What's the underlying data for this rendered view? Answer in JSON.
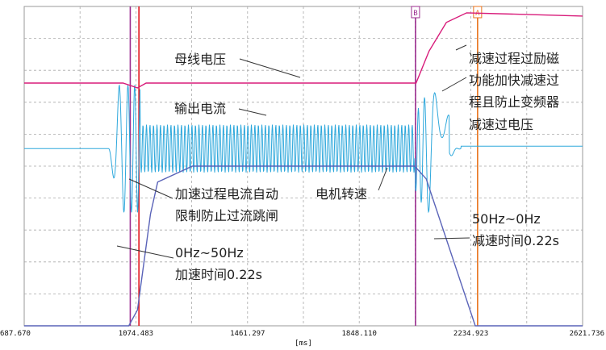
{
  "chart_data": {
    "type": "line",
    "xlabel": "[ms]",
    "x_ticks": [
      "687.670",
      "1074.483",
      "1461.297",
      "1848.110",
      "2234.923",
      "2621.736"
    ],
    "xlim": [
      687.67,
      2621.736
    ],
    "grid": true,
    "markers": [
      {
        "name": "",
        "x": 1055,
        "color": "#9b2d8f"
      },
      {
        "name": "",
        "x": 1085,
        "color": "#e0141b"
      },
      {
        "name": "B",
        "x": 2043,
        "color": "#9b2d8f"
      },
      {
        "name": "A",
        "x": 2258,
        "color": "#e8731c"
      }
    ],
    "series": [
      {
        "name": "母线电压",
        "color": "#d81b7a",
        "x": [
          687.67,
          1030,
          1080,
          1110,
          2045,
          2090,
          2150,
          2220,
          2621.736
        ],
        "y": [
          0.76,
          0.76,
          0.745,
          0.76,
          0.76,
          0.86,
          0.95,
          0.98,
          0.97
        ]
      },
      {
        "name": "电机转速",
        "color": "#5a63b8",
        "x": [
          687.67,
          1050,
          1080,
          1125,
          1150,
          1270,
          2040,
          2080,
          2250,
          2330,
          2621.736
        ],
        "y": [
          0,
          0,
          0.05,
          0.35,
          0.45,
          0.5,
          0.5,
          0.46,
          0,
          0,
          0
        ]
      }
    ],
    "current": {
      "name": "输出电流",
      "color": "#2ea8dc",
      "baseline": 0.555,
      "accel_amplitude": 0.2,
      "steady_amplitude": 0.075,
      "decel_amplitude": 0.19
    }
  },
  "annotations": {
    "bus_voltage": "母线电压",
    "output_current": "输出电流",
    "motor_speed": "电机转速",
    "accel_current_limit_1": "加速过程电流自动",
    "accel_current_limit_2": "限制防止过流跳闸",
    "accel_range": "0Hz~50Hz",
    "accel_time": "加速时间0.22s",
    "decel_range": "50Hz~0Hz",
    "decel_time": "减速时间0.22s",
    "decel_over_1": "减速过程过励磁",
    "decel_over_2": "功能加快减速过",
    "decel_over_3": "程且防止变频器",
    "decel_over_4": "减速过电压"
  },
  "colors": {
    "frame": "#9a9a9a",
    "grid": "#a9a9a9",
    "leader": "#333333"
  }
}
